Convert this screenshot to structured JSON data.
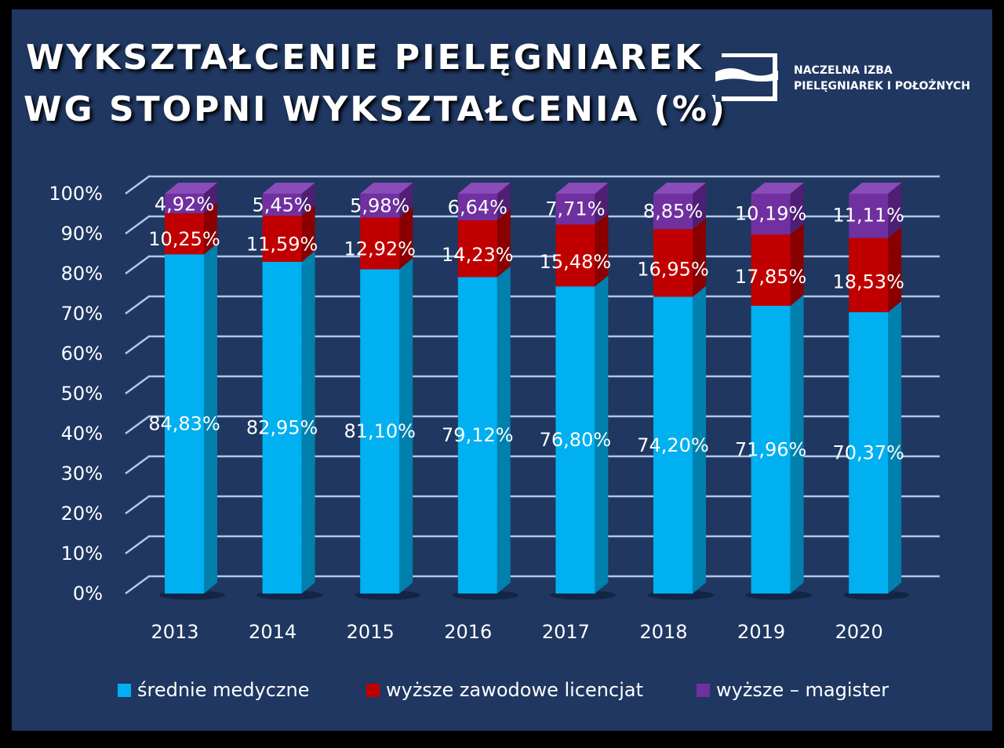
{
  "chart_data": {
    "type": "bar",
    "stacked": true,
    "title": "WYKSZTAŁCENIE PIELĘGNIAREK WG STOPNI WYKSZTAŁCENIA (%)",
    "title_lines": [
      "WYKSZTAŁCENIE PIELĘGNIAREK",
      "WG STOPNI WYKSZTAŁCENIA (%)"
    ],
    "categories": [
      "2013",
      "2014",
      "2015",
      "2016",
      "2017",
      "2018",
      "2019",
      "2020"
    ],
    "series": [
      {
        "name": "średnie medyczne",
        "color": "#00b0f0",
        "values": [
          84.83,
          82.95,
          81.1,
          79.12,
          76.8,
          74.2,
          71.96,
          70.37
        ],
        "labels": [
          "84,83%",
          "82,95%",
          "81,10%",
          "79,12%",
          "76,80%",
          "74,20%",
          "71,96%",
          "70,37%"
        ]
      },
      {
        "name": "wyższe zawodowe licencjat",
        "color": "#c00000",
        "values": [
          10.25,
          11.59,
          12.92,
          14.23,
          15.48,
          16.95,
          17.85,
          18.53
        ],
        "labels": [
          "10,25%",
          "11,59%",
          "12,92%",
          "14,23%",
          "15,48%",
          "16,95%",
          "17,85%",
          "18,53%"
        ]
      },
      {
        "name": "wyższe – magister",
        "color": "#7030a0",
        "values": [
          4.92,
          5.45,
          5.98,
          6.64,
          7.71,
          8.85,
          10.19,
          11.11
        ],
        "labels": [
          "4,92%",
          "5,45%",
          "5,98%",
          "6,64%",
          "7,71%",
          "8,85%",
          "10,19%",
          "11,11%"
        ]
      }
    ],
    "yticks": [
      "0%",
      "10%",
      "20%",
      "30%",
      "40%",
      "50%",
      "60%",
      "70%",
      "80%",
      "90%",
      "100%"
    ],
    "ylim": [
      0,
      100
    ],
    "grid": true,
    "legend": "bottom",
    "background": "#1f3761"
  },
  "logo": {
    "line1": "NACZELNA IZBA",
    "line2": "PIELĘGNIAREK I POŁOŻNYCH"
  }
}
